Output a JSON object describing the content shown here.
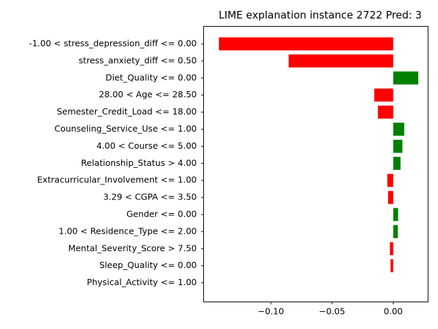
{
  "chart_data": {
    "type": "bar",
    "orientation": "horizontal",
    "title": "LIME explanation instance 2722 Pred: 3",
    "xlabel": "",
    "ylabel": "",
    "xlim": [
      -0.155,
      0.0285
    ],
    "xticks": [
      -0.1,
      -0.05,
      0.0
    ],
    "xtick_labels": [
      "−0.10",
      "−0.05",
      "0.00"
    ],
    "grid": false,
    "colors": {
      "positive": "#008000",
      "negative": "#ff0000"
    },
    "categories": [
      "-1.00 < stress_depression_diff <= 0.00",
      "stress_anxiety_diff <= 0.50",
      "Diet_Quality <= 0.00",
      "28.00 < Age <= 28.50",
      "Semester_Credit_Load <= 18.00",
      "Counseling_Service_Use <= 1.00",
      "4.00 < Course <= 5.00",
      "Relationship_Status > 4.00",
      "Extracurricular_Involvement <= 1.00",
      "3.29 < CGPA <= 3.50",
      "Gender <= 0.00",
      "1.00 < Residence_Type <= 2.00",
      "Mental_Severity_Score > 7.50",
      "Sleep_Quality <= 0.00",
      "Physical_Activity <= 1.00"
    ],
    "values": [
      -0.1425,
      -0.0855,
      0.0205,
      -0.0155,
      -0.0125,
      0.009,
      0.0075,
      0.006,
      -0.0048,
      -0.0042,
      0.004,
      0.0038,
      -0.0027,
      -0.0022,
      0.0
    ]
  }
}
